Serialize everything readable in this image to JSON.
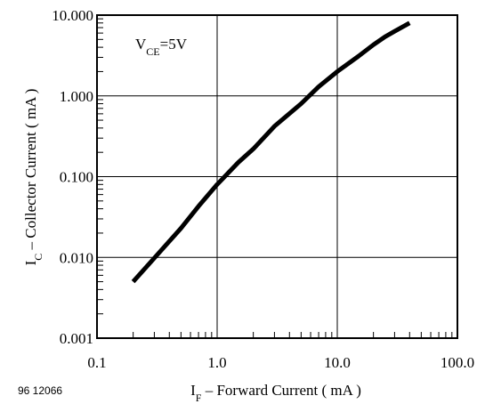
{
  "figure_id": "96 12066",
  "chart_data": {
    "type": "line",
    "x_scale": "log",
    "y_scale": "log",
    "xlim": [
      0.1,
      100.0
    ],
    "ylim": [
      0.001,
      10.0
    ],
    "grid": true,
    "x_ticks": [
      "0.1",
      "1.0",
      "10.0",
      "100.0"
    ],
    "y_ticks": [
      "0.001",
      "0.010",
      "0.100",
      "1.000",
      "10.000"
    ],
    "xlabel": {
      "main": "I",
      "sub": "F",
      "rest": " – Forward Current ( mA )"
    },
    "ylabel": {
      "main": "I",
      "sub": "C",
      "rest": " – Collector Current ( mA )"
    },
    "annotation": {
      "main": "V",
      "sub": "CE",
      "rest": "=5V"
    },
    "series": [
      {
        "x": [
          0.2,
          0.3,
          0.5,
          0.7,
          1.0,
          1.5,
          2.0,
          3.0,
          5.0,
          7.0,
          10.0,
          15.0,
          20.0,
          25.0,
          30.0,
          40.0
        ],
        "y": [
          0.005,
          0.0098,
          0.023,
          0.043,
          0.08,
          0.15,
          0.22,
          0.42,
          0.8,
          1.3,
          2.0,
          3.1,
          4.3,
          5.4,
          6.3,
          8.0
        ]
      }
    ]
  }
}
